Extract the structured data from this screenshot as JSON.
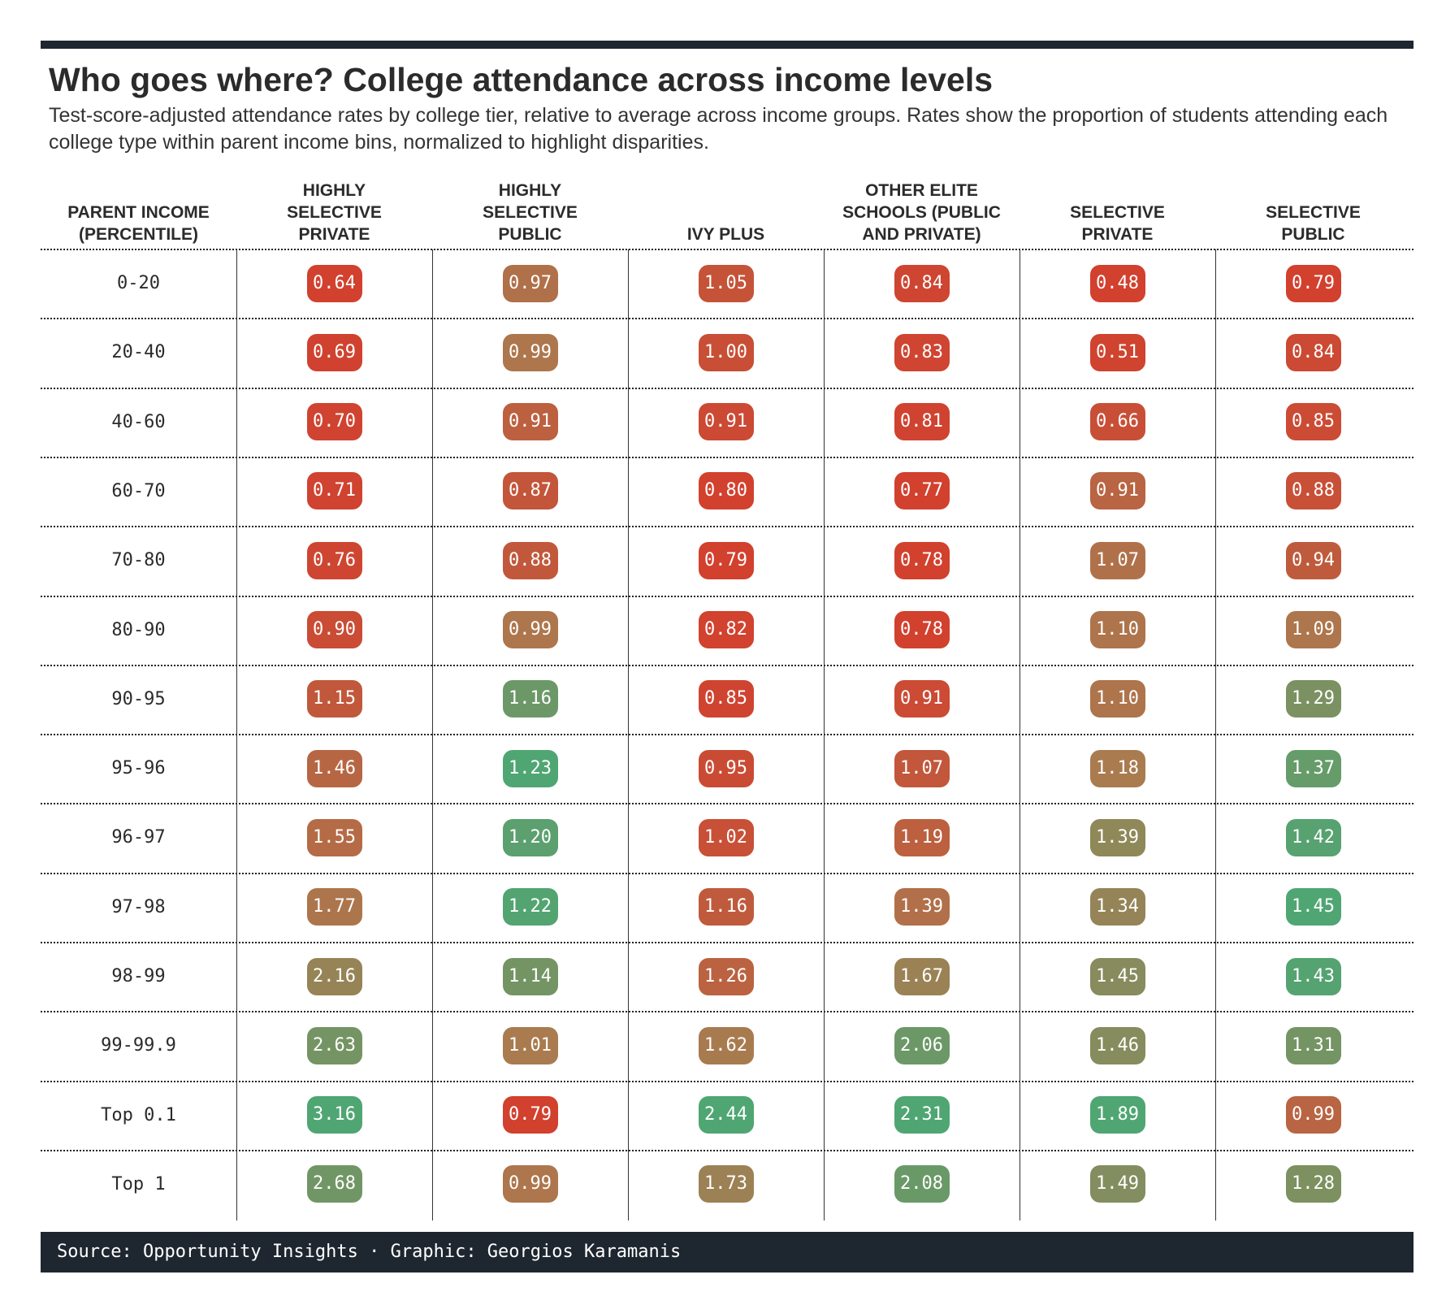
{
  "title": "Who goes where? College attendance across income levels",
  "subtitle": "Test-score-adjusted attendance rates by college tier, relative to average across income groups. Rates show the proportion of students attending each college type within parent income bins, normalized to highlight disparities.",
  "footer": "Source: Opportunity Insights · Graphic: Georgios Karamanis",
  "colors": {
    "low": "#d2402e",
    "mid": "#a97b4f",
    "high": "#4fa673",
    "rule": "#1e2630"
  },
  "chart_data": {
    "type": "table",
    "row_header": [
      "PARENT INCOME",
      "(PERCENTILE)"
    ],
    "columns": [
      [
        "HIGHLY",
        "SELECTIVE",
        "PRIVATE"
      ],
      [
        "HIGHLY",
        "SELECTIVE",
        "PUBLIC"
      ],
      [
        "IVY PLUS"
      ],
      [
        "OTHER ELITE",
        "SCHOOLS (PUBLIC",
        "AND PRIVATE)"
      ],
      [
        "SELECTIVE",
        "PRIVATE"
      ],
      [
        "SELECTIVE",
        "PUBLIC"
      ]
    ],
    "rows": [
      "0-20",
      "20-40",
      "40-60",
      "60-70",
      "70-80",
      "80-90",
      "90-95",
      "95-96",
      "96-97",
      "97-98",
      "98-99",
      "99-99.9",
      "Top 0.1",
      "Top 1"
    ],
    "values": [
      [
        "0.64",
        "0.97",
        "1.05",
        "0.84",
        "0.48",
        "0.79"
      ],
      [
        "0.69",
        "0.99",
        "1.00",
        "0.83",
        "0.51",
        "0.84"
      ],
      [
        "0.70",
        "0.91",
        "0.91",
        "0.81",
        "0.66",
        "0.85"
      ],
      [
        "0.71",
        "0.87",
        "0.80",
        "0.77",
        "0.91",
        "0.88"
      ],
      [
        "0.76",
        "0.88",
        "0.79",
        "0.78",
        "1.07",
        "0.94"
      ],
      [
        "0.90",
        "0.99",
        "0.82",
        "0.78",
        "1.10",
        "1.09"
      ],
      [
        "1.15",
        "1.16",
        "0.85",
        "0.91",
        "1.10",
        "1.29"
      ],
      [
        "1.46",
        "1.23",
        "0.95",
        "1.07",
        "1.18",
        "1.37"
      ],
      [
        "1.55",
        "1.20",
        "1.02",
        "1.19",
        "1.39",
        "1.42"
      ],
      [
        "1.77",
        "1.22",
        "1.16",
        "1.39",
        "1.34",
        "1.45"
      ],
      [
        "2.16",
        "1.14",
        "1.26",
        "1.67",
        "1.45",
        "1.43"
      ],
      [
        "2.63",
        "1.01",
        "1.62",
        "2.06",
        "1.46",
        "1.31"
      ],
      [
        "3.16",
        "0.79",
        "2.44",
        "2.31",
        "1.89",
        "0.99"
      ],
      [
        "2.68",
        "0.99",
        "1.73",
        "2.08",
        "1.49",
        "1.28"
      ]
    ]
  }
}
